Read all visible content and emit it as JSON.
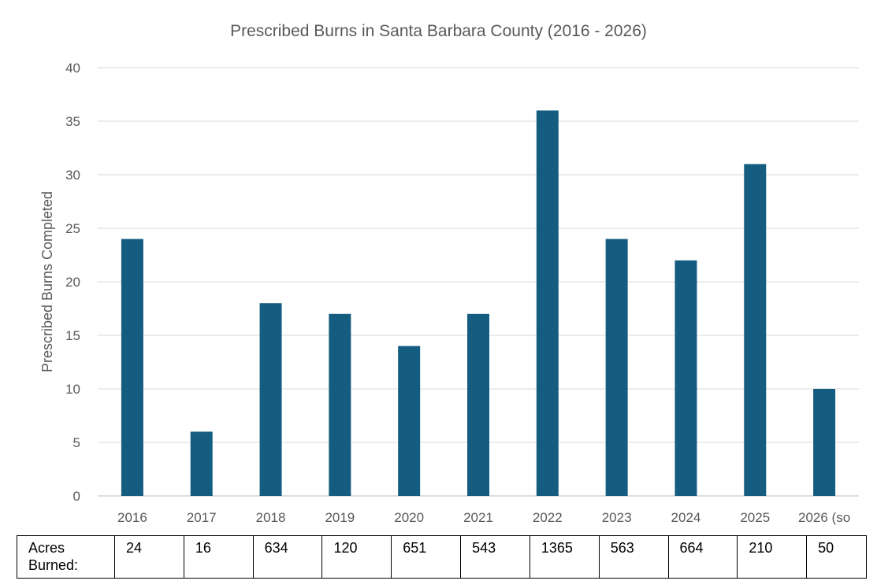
{
  "chart_data": {
    "type": "bar",
    "title": "Prescribed Burns in Santa Barbara County (2016 - 2026)",
    "ylabel": "Prescribed Burns Completed",
    "xlabel": "",
    "categories": [
      "2016",
      "2017",
      "2018",
      "2019",
      "2020",
      "2021",
      "2022",
      "2023",
      "2024",
      "2025",
      "2026 (so"
    ],
    "values": [
      24,
      6,
      18,
      17,
      14,
      17,
      36,
      24,
      22,
      31,
      10
    ],
    "ylim": [
      0,
      40
    ],
    "yticks": [
      0,
      5,
      10,
      15,
      20,
      25,
      30,
      35,
      40
    ],
    "grid": true,
    "bar_color": "#145d80"
  },
  "table": {
    "label_line1": "Acres",
    "label_line2": "Burned:",
    "values": [
      "24",
      "16",
      "634",
      "120",
      "651",
      "543",
      "1365",
      "563",
      "664",
      "210",
      "50"
    ]
  }
}
